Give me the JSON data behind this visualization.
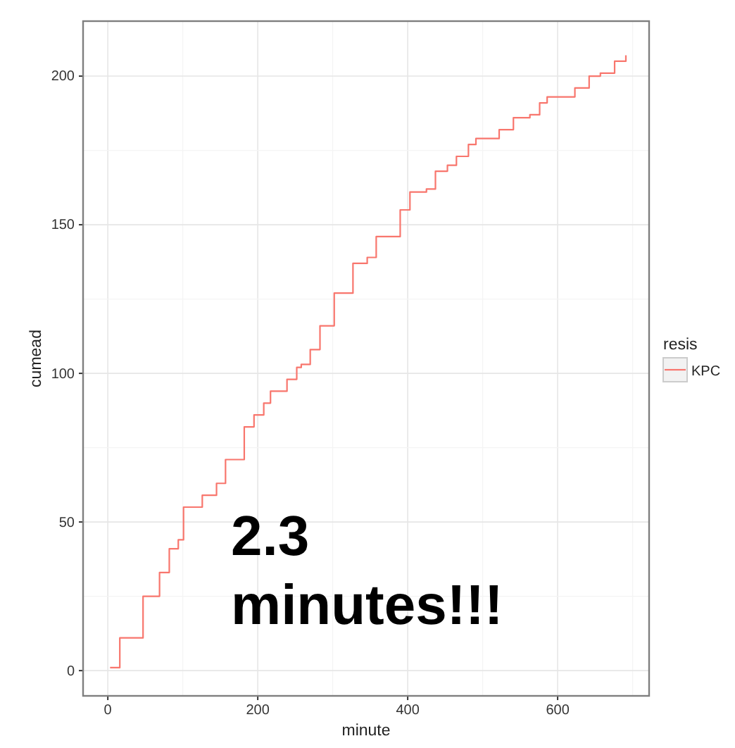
{
  "chart_data": {
    "type": "step",
    "xlabel": "minute",
    "ylabel": "cumead",
    "legend_title": "resis",
    "legend": "right",
    "grid": true,
    "xlim": [
      -33,
      722
    ],
    "ylim": [
      -8.5,
      218.5
    ],
    "xticks": [
      0,
      200,
      400,
      600
    ],
    "yticks": [
      0,
      50,
      100,
      150,
      200
    ],
    "series": [
      {
        "name": "KPC",
        "color": "#f8766d",
        "x": [
          3,
          16,
          47,
          69,
          82,
          94,
          101,
          126,
          145,
          157,
          182,
          195,
          208,
          217,
          239,
          252,
          258,
          270,
          283,
          302,
          327,
          346,
          358,
          371,
          390,
          403,
          425,
          437,
          453,
          465,
          481,
          491,
          506,
          522,
          541,
          563,
          576,
          586,
          607,
          623,
          642,
          657,
          676,
          691
        ],
        "values": [
          1,
          11,
          25,
          33,
          41,
          44,
          55,
          59,
          63,
          71,
          82,
          86,
          90,
          94,
          98,
          102,
          103,
          108,
          116,
          127,
          137,
          139,
          146,
          146,
          155,
          161,
          162,
          168,
          170,
          173,
          177,
          179,
          179,
          182,
          186,
          187,
          191,
          193,
          193,
          196,
          200,
          201,
          205,
          207
        ]
      }
    ],
    "annotations": [
      "2.3\nminutes!!!"
    ]
  }
}
